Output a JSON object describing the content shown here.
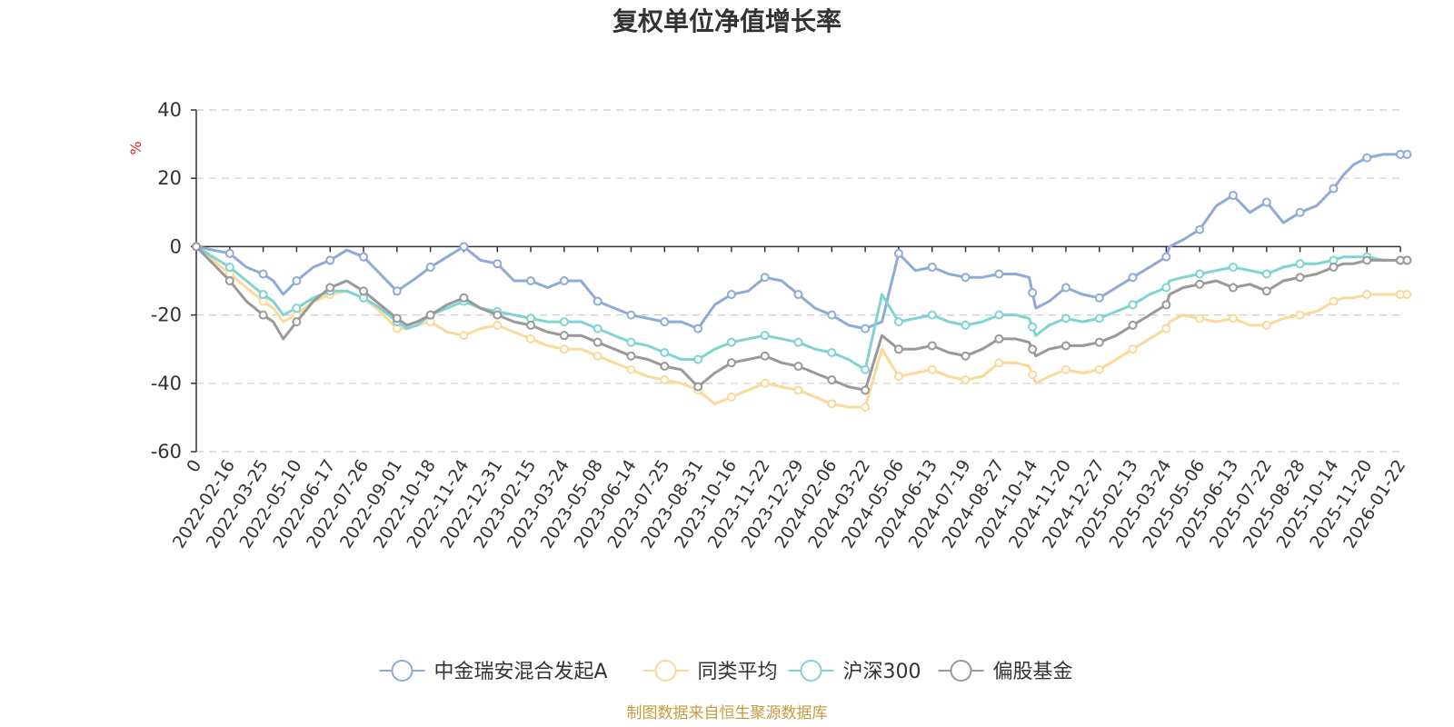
{
  "chart_data": {
    "type": "line",
    "title": "复权单位净值增长率",
    "ylabel": "%",
    "xlabel": "",
    "ylim": [
      -60,
      40
    ],
    "yticks": [
      40,
      20,
      0,
      -20,
      -40,
      -60
    ],
    "categories": [
      "0",
      "2022-02-16",
      "2022-03-25",
      "2022-05-10",
      "2022-06-17",
      "2022-07-26",
      "2022-09-01",
      "2022-10-18",
      "2022-11-24",
      "2022-12-31",
      "2023-02-15",
      "2023-03-24",
      "2023-05-08",
      "2023-06-14",
      "2023-07-25",
      "2023-08-31",
      "2023-10-16",
      "2023-11-22",
      "2023-12-29",
      "2024-02-06",
      "2024-03-22",
      "2024-05-06",
      "2024-06-13",
      "2024-07-19",
      "2024-08-27",
      "2024-10-14",
      "2024-11-20",
      "2024-12-27",
      "2025-02-13",
      "2025-03-24",
      "2025-05-06",
      "2025-06-13",
      "2025-07-22",
      "2025-08-28",
      "2025-10-14",
      "2025-11-20",
      "2026-01-22"
    ],
    "grid": true,
    "legend_position": "bottom-center",
    "series": [
      {
        "name": "中金瑞安混合发起A",
        "color": "#8eaad8",
        "x": [
          0,
          0.5,
          1,
          1.5,
          2,
          2.3,
          2.6,
          3,
          3.5,
          4,
          4.5,
          5,
          5.5,
          6,
          6.3,
          6.6,
          7,
          7.5,
          8,
          8.5,
          9,
          9.5,
          10,
          10.5,
          11,
          11.5,
          12,
          12.5,
          13,
          13.5,
          14,
          14.5,
          15,
          15.5,
          16,
          16.5,
          17,
          17.5,
          18,
          18.5,
          19,
          19.5,
          20,
          20.5,
          21,
          21.5,
          22,
          22.5,
          23,
          23.5,
          24,
          24.5,
          24.9,
          25.1,
          25.5,
          26,
          26.5,
          27,
          27.5,
          28,
          28.5,
          29,
          29.1,
          29.5,
          30,
          30.5,
          31,
          31.5,
          32,
          32.5,
          33,
          33.5,
          34,
          34.3,
          34.6,
          35,
          35.5,
          36,
          36.2
        ],
        "y": [
          0,
          -1,
          -2,
          -6,
          -8,
          -10,
          -14,
          -10,
          -6,
          -4,
          -1,
          -3,
          -8,
          -13,
          -11,
          -9,
          -6,
          -3,
          0,
          -4,
          -5,
          -10,
          -10,
          -12,
          -10,
          -10,
          -16,
          -18,
          -20,
          -21,
          -22,
          -22,
          -24,
          -17,
          -14,
          -13,
          -9,
          -10,
          -14,
          -18,
          -20,
          -23,
          -24,
          -22,
          -2,
          -7,
          -6,
          -8,
          -9,
          -9,
          -8,
          -8,
          -9,
          -18,
          -16,
          -12,
          -14,
          -15,
          -12,
          -9,
          -6,
          -3,
          0,
          2,
          5,
          12,
          15,
          10,
          13,
          7,
          10,
          12,
          17,
          21,
          24,
          26,
          27,
          27,
          27
        ],
        "markers_x": [
          0,
          1,
          2,
          3,
          4,
          5,
          6,
          7,
          8,
          9,
          10,
          11,
          12,
          13,
          14,
          15,
          16,
          17,
          18,
          19,
          20,
          21,
          22,
          23,
          24,
          25,
          26,
          27,
          28,
          29,
          30,
          31,
          32,
          33,
          34,
          35,
          36,
          36.2
        ]
      },
      {
        "name": "同类平均",
        "color": "#fcd89a",
        "x": [
          0,
          0.5,
          1,
          1.5,
          2,
          2.3,
          2.6,
          3,
          3.5,
          4,
          4.5,
          5,
          5.5,
          6,
          6.3,
          6.6,
          7,
          7.5,
          8,
          8.5,
          9,
          9.5,
          10,
          10.5,
          11,
          11.5,
          12,
          12.5,
          13,
          13.5,
          14,
          14.5,
          15,
          15.5,
          16,
          16.5,
          17,
          17.5,
          18,
          18.5,
          19,
          19.5,
          20,
          20.5,
          21,
          21.5,
          22,
          22.5,
          23,
          23.5,
          24,
          24.5,
          24.9,
          25.1,
          25.5,
          26,
          26.5,
          27,
          27.5,
          28,
          28.5,
          29,
          29.1,
          29.5,
          30,
          30.5,
          31,
          31.5,
          32,
          32.5,
          33,
          33.5,
          34,
          34.3,
          34.6,
          35,
          35.5,
          36,
          36.2
        ],
        "y": [
          0,
          -4,
          -8,
          -12,
          -16,
          -18,
          -22,
          -20,
          -16,
          -14,
          -13,
          -15,
          -19,
          -24,
          -24,
          -23,
          -22,
          -25,
          -26,
          -24,
          -23,
          -25,
          -27,
          -29,
          -30,
          -30,
          -32,
          -34,
          -36,
          -38,
          -39,
          -40,
          -42,
          -46,
          -44,
          -42,
          -40,
          -41,
          -42,
          -44,
          -46,
          -47,
          -47,
          -30,
          -38,
          -37,
          -36,
          -38,
          -39,
          -38,
          -34,
          -34,
          -35,
          -40,
          -38,
          -36,
          -37,
          -36,
          -33,
          -30,
          -27,
          -24,
          -22,
          -20,
          -21,
          -22,
          -21,
          -23,
          -23,
          -21,
          -20,
          -19,
          -16,
          -15,
          -15,
          -14,
          -14,
          -14,
          -14
        ],
        "markers_x": [
          0,
          1,
          2,
          3,
          4,
          5,
          6,
          7,
          8,
          9,
          10,
          11,
          12,
          13,
          14,
          15,
          16,
          17,
          18,
          19,
          20,
          21,
          22,
          23,
          24,
          25,
          26,
          27,
          28,
          29,
          30,
          31,
          32,
          33,
          34,
          35,
          36,
          36.2
        ]
      },
      {
        "name": "沪深300",
        "color": "#7fd3d3",
        "x": [
          0,
          0.5,
          1,
          1.5,
          2,
          2.3,
          2.6,
          3,
          3.5,
          4,
          4.5,
          5,
          5.5,
          6,
          6.3,
          6.6,
          7,
          7.5,
          8,
          8.5,
          9,
          9.5,
          10,
          10.5,
          11,
          11.5,
          12,
          12.5,
          13,
          13.5,
          14,
          14.5,
          15,
          15.5,
          16,
          16.5,
          17,
          17.5,
          18,
          18.5,
          19,
          19.5,
          20,
          20.5,
          21,
          21.5,
          22,
          22.5,
          23,
          23.5,
          24,
          24.5,
          24.9,
          25.1,
          25.5,
          26,
          26.5,
          27,
          27.5,
          28,
          28.5,
          29,
          29.1,
          29.5,
          30,
          30.5,
          31,
          31.5,
          32,
          32.5,
          33,
          33.5,
          34,
          34.3,
          34.6,
          35,
          35.5,
          36,
          36.2
        ],
        "y": [
          0,
          -3,
          -6,
          -10,
          -14,
          -16,
          -20,
          -18,
          -15,
          -13,
          -13,
          -15,
          -18,
          -22,
          -24,
          -23,
          -20,
          -18,
          -16,
          -18,
          -19,
          -20,
          -21,
          -22,
          -22,
          -22,
          -24,
          -26,
          -28,
          -29,
          -31,
          -33,
          -33,
          -30,
          -28,
          -27,
          -26,
          -27,
          -28,
          -30,
          -31,
          -33,
          -36,
          -14,
          -22,
          -21,
          -20,
          -22,
          -23,
          -22,
          -20,
          -20,
          -21,
          -26,
          -23,
          -21,
          -22,
          -21,
          -19,
          -17,
          -14,
          -12,
          -10,
          -9,
          -8,
          -7,
          -6,
          -7,
          -8,
          -6,
          -5,
          -5,
          -4,
          -3,
          -3,
          -3,
          -4,
          -4,
          -4
        ],
        "markers_x": [
          0,
          1,
          2,
          3,
          4,
          5,
          6,
          7,
          8,
          9,
          10,
          11,
          12,
          13,
          14,
          15,
          16,
          17,
          18,
          19,
          20,
          21,
          22,
          23,
          24,
          25,
          26,
          27,
          28,
          29,
          30,
          31,
          32,
          33,
          34,
          35,
          36,
          36.2
        ]
      },
      {
        "name": "偏股基金",
        "color": "#999999",
        "x": [
          0,
          0.5,
          1,
          1.5,
          2,
          2.3,
          2.6,
          3,
          3.5,
          4,
          4.5,
          5,
          5.5,
          6,
          6.3,
          6.6,
          7,
          7.5,
          8,
          8.5,
          9,
          9.5,
          10,
          10.5,
          11,
          11.5,
          12,
          12.5,
          13,
          13.5,
          14,
          14.5,
          15,
          15.5,
          16,
          16.5,
          17,
          17.5,
          18,
          18.5,
          19,
          19.5,
          20,
          20.5,
          21,
          21.5,
          22,
          22.5,
          23,
          23.5,
          24,
          24.5,
          24.9,
          25.1,
          25.5,
          26,
          26.5,
          27,
          27.5,
          28,
          28.5,
          29,
          29.1,
          29.5,
          30,
          30.5,
          31,
          31.5,
          32,
          32.5,
          33,
          33.5,
          34,
          34.3,
          34.6,
          35,
          35.5,
          36,
          36.2
        ],
        "y": [
          0,
          -5,
          -10,
          -16,
          -20,
          -22,
          -27,
          -22,
          -16,
          -12,
          -10,
          -13,
          -17,
          -21,
          -23,
          -22,
          -20,
          -17,
          -15,
          -18,
          -20,
          -22,
          -23,
          -25,
          -26,
          -26,
          -28,
          -30,
          -32,
          -33,
          -35,
          -36,
          -41,
          -37,
          -34,
          -33,
          -32,
          -34,
          -35,
          -37,
          -39,
          -41,
          -42,
          -26,
          -30,
          -30,
          -29,
          -31,
          -32,
          -30,
          -27,
          -27,
          -28,
          -32,
          -30,
          -29,
          -29,
          -28,
          -26,
          -23,
          -20,
          -17,
          -14,
          -12,
          -11,
          -10,
          -12,
          -11,
          -13,
          -10,
          -9,
          -8,
          -6,
          -5,
          -5,
          -4,
          -4,
          -4,
          -4
        ],
        "markers_x": [
          0,
          1,
          2,
          3,
          4,
          5,
          6,
          7,
          8,
          9,
          10,
          11,
          12,
          13,
          14,
          15,
          16,
          17,
          18,
          19,
          20,
          21,
          22,
          23,
          24,
          25,
          26,
          27,
          28,
          29,
          30,
          31,
          32,
          33,
          34,
          35,
          36,
          36.2
        ]
      }
    ]
  },
  "source_note": "制图数据来自恒生聚源数据库"
}
